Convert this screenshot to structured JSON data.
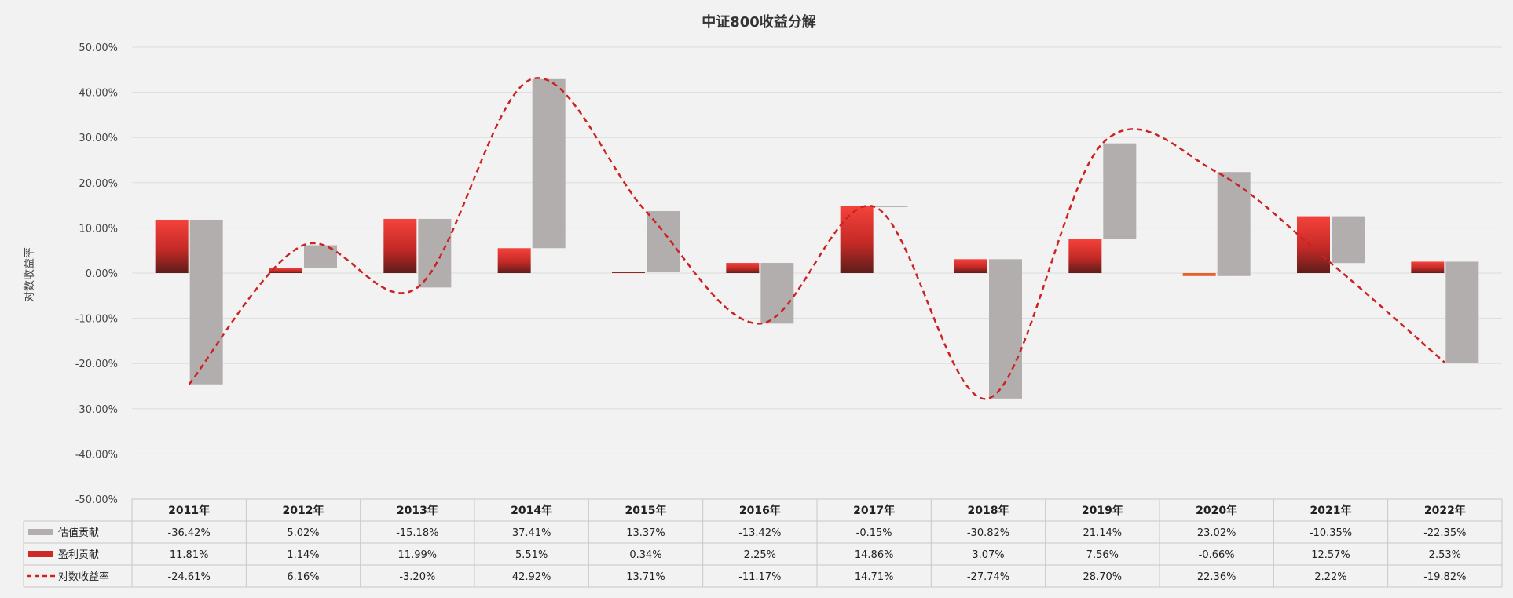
{
  "chart_data": {
    "type": "bar",
    "title": "中证800收益分解",
    "ylabel": "对数收益率",
    "ylim": [
      -50,
      50
    ],
    "yticks": [
      "50.00%",
      "40.00%",
      "30.00%",
      "20.00%",
      "10.00%",
      "0.00%",
      "-10.00%",
      "-20.00%",
      "-30.00%",
      "-40.00%",
      "-50.00%"
    ],
    "yticks_values": [
      50,
      40,
      30,
      20,
      10,
      0,
      -10,
      -20,
      -30,
      -40,
      -50
    ],
    "categories": [
      "2011年",
      "2012年",
      "2013年",
      "2014年",
      "2015年",
      "2016年",
      "2017年",
      "2018年",
      "2019年",
      "2020年",
      "2021年",
      "2022年"
    ],
    "series": [
      {
        "name": "估值贡献",
        "kind": "waterfall-bar",
        "color": "#b3aeae",
        "values": [
          -36.42,
          5.02,
          -15.18,
          37.41,
          13.37,
          -13.42,
          -0.15,
          -30.82,
          21.14,
          23.02,
          -10.35,
          -22.35
        ],
        "labels": [
          "-36.42%",
          "5.02%",
          "-15.18%",
          "37.41%",
          "13.37%",
          "-13.42%",
          "-0.15%",
          "-30.82%",
          "21.14%",
          "23.02%",
          "-10.35%",
          "-22.35%"
        ]
      },
      {
        "name": "盈利贡献",
        "kind": "bar",
        "color": "#e8302c",
        "values": [
          11.81,
          1.14,
          11.99,
          5.51,
          0.34,
          2.25,
          14.86,
          3.07,
          7.56,
          -0.66,
          12.57,
          2.53
        ],
        "labels": [
          "11.81%",
          "1.14%",
          "11.99%",
          "5.51%",
          "0.34%",
          "2.25%",
          "14.86%",
          "3.07%",
          "7.56%",
          "-0.66%",
          "12.57%",
          "2.53%"
        ]
      },
      {
        "name": "对数收益率",
        "kind": "line-dashed",
        "color": "#cc2222",
        "values": [
          -24.61,
          6.16,
          -3.2,
          42.92,
          13.71,
          -11.17,
          14.71,
          -27.74,
          28.7,
          22.36,
          2.22,
          -19.82
        ],
        "labels": [
          "-24.61%",
          "6.16%",
          "-3.20%",
          "42.92%",
          "13.71%",
          "-11.17%",
          "14.71%",
          "-27.74%",
          "28.70%",
          "22.36%",
          "2.22%",
          "-19.82%"
        ]
      }
    ],
    "grid": true,
    "legend": "data-table-below"
  }
}
